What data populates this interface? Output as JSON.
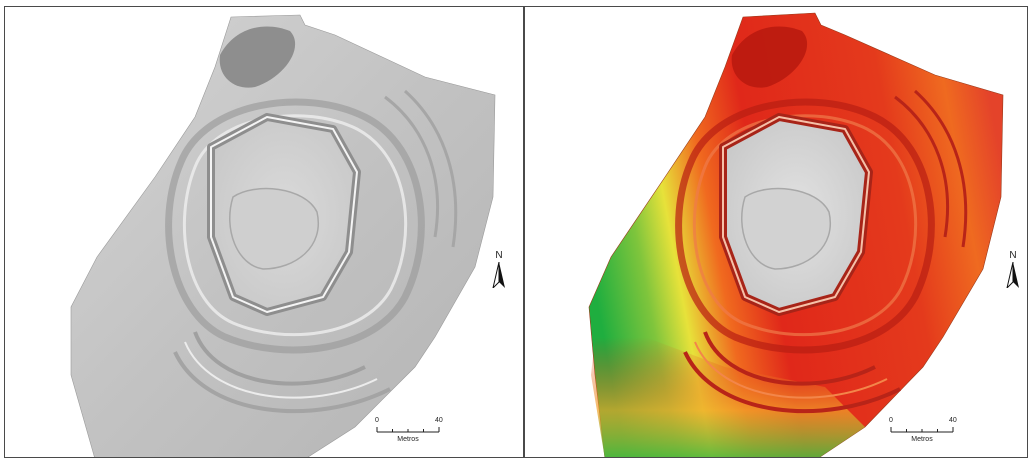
{
  "panels": [
    {
      "id": "hillshade",
      "north_label": "N",
      "scale": {
        "ticks": [
          "0",
          "40"
        ],
        "unit_label": "Metros"
      },
      "colors": {
        "relief_low": "#8a8a8a",
        "relief_mid": "#c4c4c4",
        "relief_high": "#e8e8e8"
      }
    },
    {
      "id": "elevation",
      "north_label": "N",
      "scale": {
        "ticks": [
          "0",
          "40"
        ],
        "unit_label": "Metros"
      },
      "colors": {
        "low": "#1fae3f",
        "mid_low": "#e7e23a",
        "mid": "#f06a1f",
        "high": "#e0281a",
        "top": "#d8d8d8"
      }
    }
  ]
}
